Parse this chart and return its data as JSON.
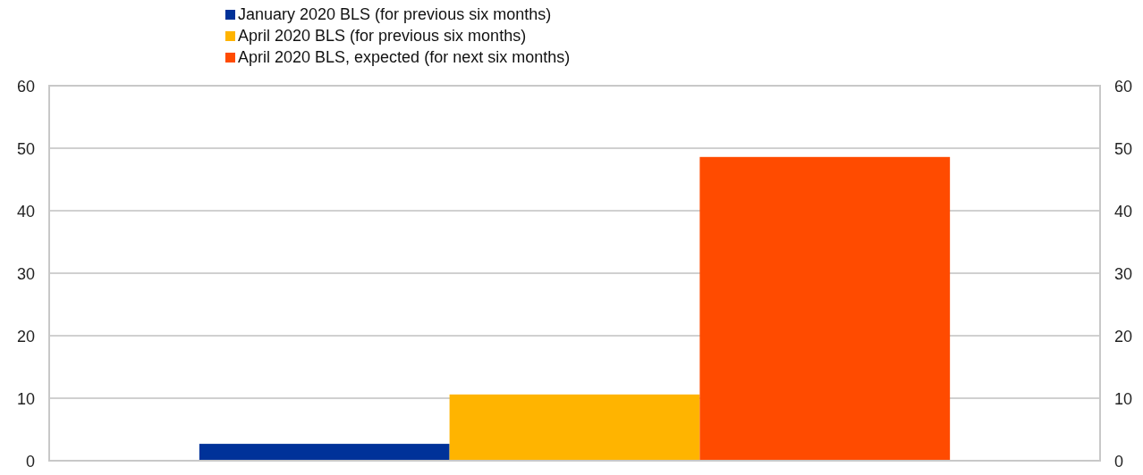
{
  "chart_data": {
    "type": "bar",
    "categories": [
      null
    ],
    "series": [
      {
        "name": "January 2020 BLS (for previous six months)",
        "color": "#003299",
        "values": [
          2.7
        ]
      },
      {
        "name": "April 2020 BLS (for previous six months)",
        "color": "#ffb400",
        "values": [
          10.6
        ]
      },
      {
        "name": "April 2020 BLS, expected (for next six months)",
        "color": "#ff4b00",
        "values": [
          48.6
        ]
      }
    ],
    "ylim": [
      0,
      60
    ],
    "yticks": [
      0,
      10,
      20,
      30,
      40,
      50,
      60
    ],
    "y2lim": [
      0,
      60
    ],
    "y2ticks": [
      0,
      10,
      20,
      30,
      40,
      50,
      60
    ],
    "grid": "y",
    "legend": "top"
  }
}
